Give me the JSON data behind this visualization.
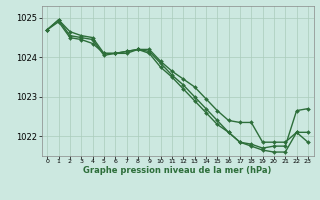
{
  "hours": [
    0,
    1,
    2,
    3,
    4,
    5,
    6,
    7,
    8,
    9,
    10,
    11,
    12,
    13,
    14,
    15,
    16,
    17,
    18,
    19,
    20,
    21,
    22,
    23
  ],
  "line1": [
    1024.7,
    1024.95,
    1024.65,
    1024.55,
    1024.5,
    1024.1,
    1024.1,
    1024.15,
    1024.2,
    1024.2,
    1023.9,
    1023.65,
    1023.45,
    1023.25,
    1022.95,
    1022.65,
    1022.4,
    1022.35,
    1022.35,
    1021.85,
    1021.85,
    1021.85,
    1022.1,
    1021.85
  ],
  "line2": [
    1024.7,
    1024.95,
    1024.55,
    1024.5,
    1024.45,
    1024.05,
    1024.1,
    1024.1,
    1024.2,
    1024.15,
    1023.85,
    1023.55,
    1023.3,
    1023.0,
    1022.7,
    1022.4,
    1022.1,
    1021.85,
    1021.8,
    1021.7,
    1021.75,
    1021.75,
    1022.65,
    1022.7
  ],
  "line3": [
    1024.7,
    1024.9,
    1024.5,
    1024.45,
    1024.35,
    1024.1,
    1024.1,
    1024.15,
    1024.2,
    1024.1,
    1023.75,
    1023.5,
    1023.2,
    1022.9,
    1022.6,
    1022.3,
    1022.1,
    1021.85,
    1021.75,
    1021.65,
    1021.6,
    1021.6,
    1022.1,
    1022.1
  ],
  "bg_color": "#cce8e0",
  "grid_color": "#aaccbb",
  "line_color": "#2d6e3a",
  "marker": "D",
  "marker_size": 2,
  "line_width": 1.0,
  "ylabel_ticks": [
    1022,
    1023,
    1024,
    1025
  ],
  "xlabel": "Graphe pression niveau de la mer (hPa)",
  "xlim": [
    -0.5,
    23.5
  ],
  "ylim": [
    1021.5,
    1025.3
  ]
}
